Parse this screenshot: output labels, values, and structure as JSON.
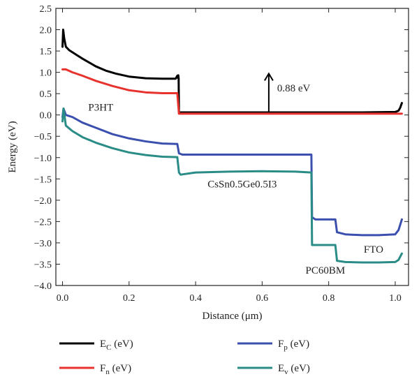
{
  "chart_data": {
    "type": "line",
    "xlabel": "Distance (μm)",
    "ylabel": "Energy (eV)",
    "xlim": [
      -0.02,
      1.04
    ],
    "ylim": [
      -4.0,
      2.5
    ],
    "x_ticks": [
      "0.0",
      "0.2",
      "0.4",
      "0.6",
      "0.8",
      "1.0"
    ],
    "x_tick_values": [
      0.0,
      0.2,
      0.4,
      0.6,
      0.8,
      1.0
    ],
    "y_ticks": [
      "2.5",
      "2.0",
      "1.5",
      "1.0",
      "0.5",
      "0.0",
      "−0.5",
      "−1.0",
      "−1.5",
      "−2.0",
      "−2.5",
      "−3.0",
      "−3.5",
      "−4.0"
    ],
    "y_tick_values": [
      2.5,
      2.0,
      1.5,
      1.0,
      0.5,
      0.0,
      -0.5,
      -1.0,
      -1.5,
      -2.0,
      -2.5,
      -3.0,
      -3.5,
      -4.0
    ],
    "grid": false,
    "legend_position": "bottom",
    "series": [
      {
        "name": "E_C (eV)",
        "label_main": "E",
        "label_sub": "C",
        "label_unit": " (eV)",
        "color": "#000000",
        "x": [
          0.0,
          0.002,
          0.005,
          0.01,
          0.02,
          0.04,
          0.06,
          0.08,
          0.1,
          0.13,
          0.16,
          0.2,
          0.25,
          0.3,
          0.34,
          0.345,
          0.347,
          0.348,
          0.349,
          0.35,
          0.4,
          0.5,
          0.6,
          0.7,
          0.75,
          0.8,
          0.9,
          1.0,
          1.01,
          1.015,
          1.02
        ],
        "y": [
          1.6,
          2.0,
          1.8,
          1.6,
          1.52,
          1.42,
          1.32,
          1.23,
          1.14,
          1.04,
          0.97,
          0.9,
          0.86,
          0.85,
          0.85,
          0.92,
          0.87,
          0.93,
          0.86,
          0.06,
          0.06,
          0.06,
          0.06,
          0.06,
          0.06,
          0.06,
          0.06,
          0.07,
          0.1,
          0.17,
          0.28
        ]
      },
      {
        "name": "F_n (eV)",
        "label_main": "F",
        "label_sub": "n",
        "label_unit": " (eV)",
        "color": "#e8322d",
        "x": [
          0.0,
          0.01,
          0.03,
          0.06,
          0.1,
          0.15,
          0.2,
          0.25,
          0.3,
          0.345,
          0.35,
          0.4,
          0.6,
          0.8,
          1.0,
          1.02
        ],
        "y": [
          1.07,
          1.07,
          1.0,
          0.92,
          0.8,
          0.68,
          0.58,
          0.53,
          0.51,
          0.51,
          0.03,
          0.03,
          0.03,
          0.03,
          0.03,
          0.03
        ]
      },
      {
        "name": "F_p (eV)",
        "label_main": "F",
        "label_sub": "p",
        "label_unit": " (eV)",
        "color": "#3b4fae",
        "x": [
          0.0,
          0.003,
          0.01,
          0.03,
          0.06,
          0.1,
          0.15,
          0.2,
          0.25,
          0.3,
          0.345,
          0.35,
          0.36,
          0.4,
          0.5,
          0.6,
          0.7,
          0.748,
          0.75,
          0.76,
          0.8,
          0.82,
          0.825,
          0.85,
          0.9,
          0.95,
          1.0,
          1.01,
          1.02
        ],
        "y": [
          -0.05,
          0.15,
          0.0,
          -0.05,
          -0.18,
          -0.3,
          -0.45,
          -0.55,
          -0.62,
          -0.67,
          -0.68,
          -0.9,
          -0.93,
          -0.93,
          -0.93,
          -0.93,
          -0.93,
          -0.93,
          -2.4,
          -2.45,
          -2.45,
          -2.45,
          -2.75,
          -2.8,
          -2.82,
          -2.82,
          -2.8,
          -2.7,
          -2.45
        ]
      },
      {
        "name": "E_v (eV)",
        "label_main": "E",
        "label_sub": "v",
        "label_unit": " (eV)",
        "color": "#2a8c86",
        "x": [
          0.0,
          0.003,
          0.01,
          0.03,
          0.06,
          0.1,
          0.15,
          0.2,
          0.25,
          0.3,
          0.345,
          0.35,
          0.355,
          0.4,
          0.5,
          0.6,
          0.7,
          0.748,
          0.75,
          0.76,
          0.8,
          0.82,
          0.825,
          0.85,
          0.9,
          0.95,
          1.0,
          1.01,
          1.02
        ],
        "y": [
          -0.15,
          0.15,
          -0.25,
          -0.38,
          -0.52,
          -0.65,
          -0.78,
          -0.88,
          -0.94,
          -0.98,
          -0.99,
          -1.35,
          -1.4,
          -1.35,
          -1.33,
          -1.32,
          -1.33,
          -1.35,
          -3.05,
          -3.05,
          -3.05,
          -3.05,
          -3.42,
          -3.45,
          -3.46,
          -3.46,
          -3.45,
          -3.4,
          -3.25
        ]
      }
    ],
    "annotations": [
      {
        "text": "P3HT",
        "x": 0.115,
        "y": 0.1
      },
      {
        "text": "0.88 eV",
        "x": 0.695,
        "y": 0.55
      },
      {
        "text": "CsSn0.5Ge0.5I3",
        "x": 0.54,
        "y": -1.7
      },
      {
        "text": "FTO",
        "x": 0.935,
        "y": -3.23
      },
      {
        "text": "PC60BM",
        "x": 0.79,
        "y": -3.72
      }
    ],
    "arrow": {
      "x": 0.62,
      "y_from": 0.06,
      "y_to": 0.97
    }
  }
}
